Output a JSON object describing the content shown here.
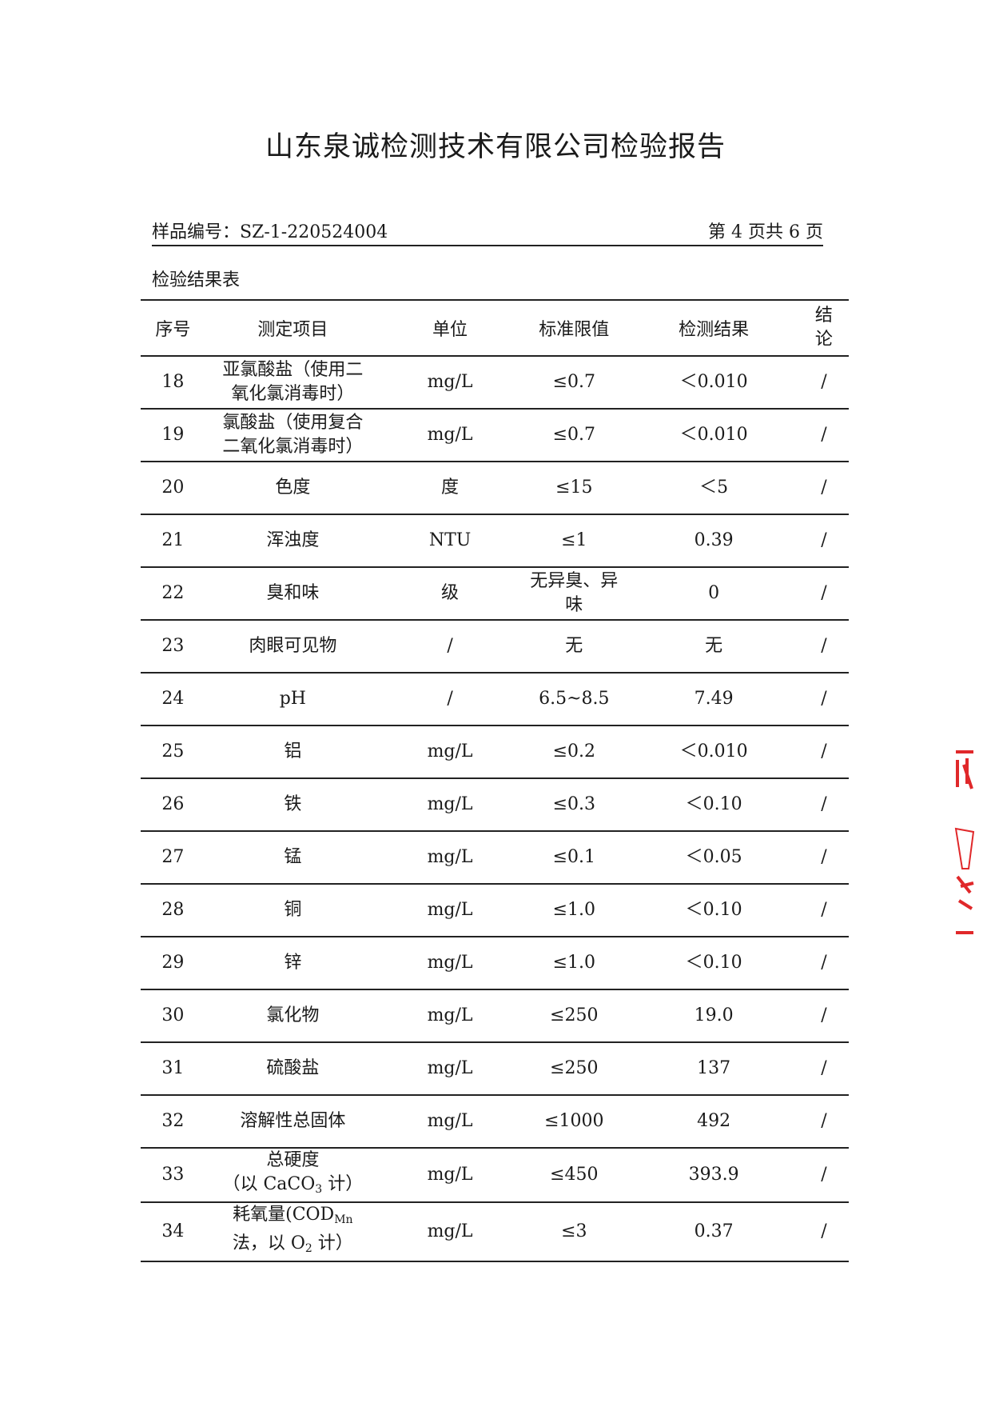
{
  "title": "山东泉诚检测技术有限公司检验报告",
  "sample_label": "样品编号：",
  "sample_no": "SZ-1-220524004",
  "page_info": "第 4 页共  6 页",
  "caption": "检验结果表",
  "headers": [
    "序号",
    "测定项目",
    "单位",
    "标准限值",
    "检测结果",
    "结论"
  ],
  "rows": [
    {
      "no": "18",
      "item": "亚氯酸盐（使用二氧化氯消毒时）",
      "unit": "mg/L",
      "limit": "≤0.7",
      "result": "＜0.010",
      "conclusion": "/"
    },
    {
      "no": "19",
      "item": "氯酸盐（使用复合二氧化氯消毒时）",
      "unit": "mg/L",
      "limit": "≤0.7",
      "result": "＜0.010",
      "conclusion": "/"
    },
    {
      "no": "20",
      "item": "色度",
      "unit": "度",
      "limit": "≤15",
      "result": "＜5",
      "conclusion": "/"
    },
    {
      "no": "21",
      "item": "浑浊度",
      "unit": "NTU",
      "limit": "≤1",
      "result": "0.39",
      "conclusion": "/"
    },
    {
      "no": "22",
      "item": "臭和味",
      "unit": "级",
      "limit": "无异臭、异味",
      "result": "0",
      "conclusion": "/"
    },
    {
      "no": "23",
      "item": "肉眼可见物",
      "unit": "/",
      "limit": "无",
      "result": "无",
      "conclusion": "/"
    },
    {
      "no": "24",
      "item": "pH",
      "unit": "/",
      "limit": "6.5~8.5",
      "result": "7.49",
      "conclusion": "/"
    },
    {
      "no": "25",
      "item": "铝",
      "unit": "mg/L",
      "limit": "≤0.2",
      "result": "＜0.010",
      "conclusion": "/"
    },
    {
      "no": "26",
      "item": "铁",
      "unit": "mg/L",
      "limit": "≤0.3",
      "result": "＜0.10",
      "conclusion": "/"
    },
    {
      "no": "27",
      "item": "锰",
      "unit": "mg/L",
      "limit": "≤0.1",
      "result": "＜0.05",
      "conclusion": "/"
    },
    {
      "no": "28",
      "item": "铜",
      "unit": "mg/L",
      "limit": "≤1.0",
      "result": "＜0.10",
      "conclusion": "/"
    },
    {
      "no": "29",
      "item": "锌",
      "unit": "mg/L",
      "limit": "≤1.0",
      "result": "＜0.10",
      "conclusion": "/"
    },
    {
      "no": "30",
      "item": "氯化物",
      "unit": "mg/L",
      "limit": "≤250",
      "result": "19.0",
      "conclusion": "/"
    },
    {
      "no": "31",
      "item": "硫酸盐",
      "unit": "mg/L",
      "limit": "≤250",
      "result": "137",
      "conclusion": "/"
    },
    {
      "no": "32",
      "item": "溶解性总固体",
      "unit": "mg/L",
      "limit": "≤1000",
      "result": "492",
      "conclusion": "/"
    },
    {
      "no": "33",
      "item_parts": [
        "总硬度",
        "（以 CaCO",
        "3",
        " 计）"
      ],
      "unit": "mg/L",
      "limit": "≤450",
      "result": "393.9",
      "conclusion": "/"
    },
    {
      "no": "34",
      "item_parts": [
        "耗氧量(COD",
        "Mn",
        "法，以 O",
        "2",
        " 计）"
      ],
      "unit": "mg/L",
      "limit": "≤3",
      "result": "0.37",
      "conclusion": "/"
    }
  ],
  "stamp_color": "#e0282a"
}
